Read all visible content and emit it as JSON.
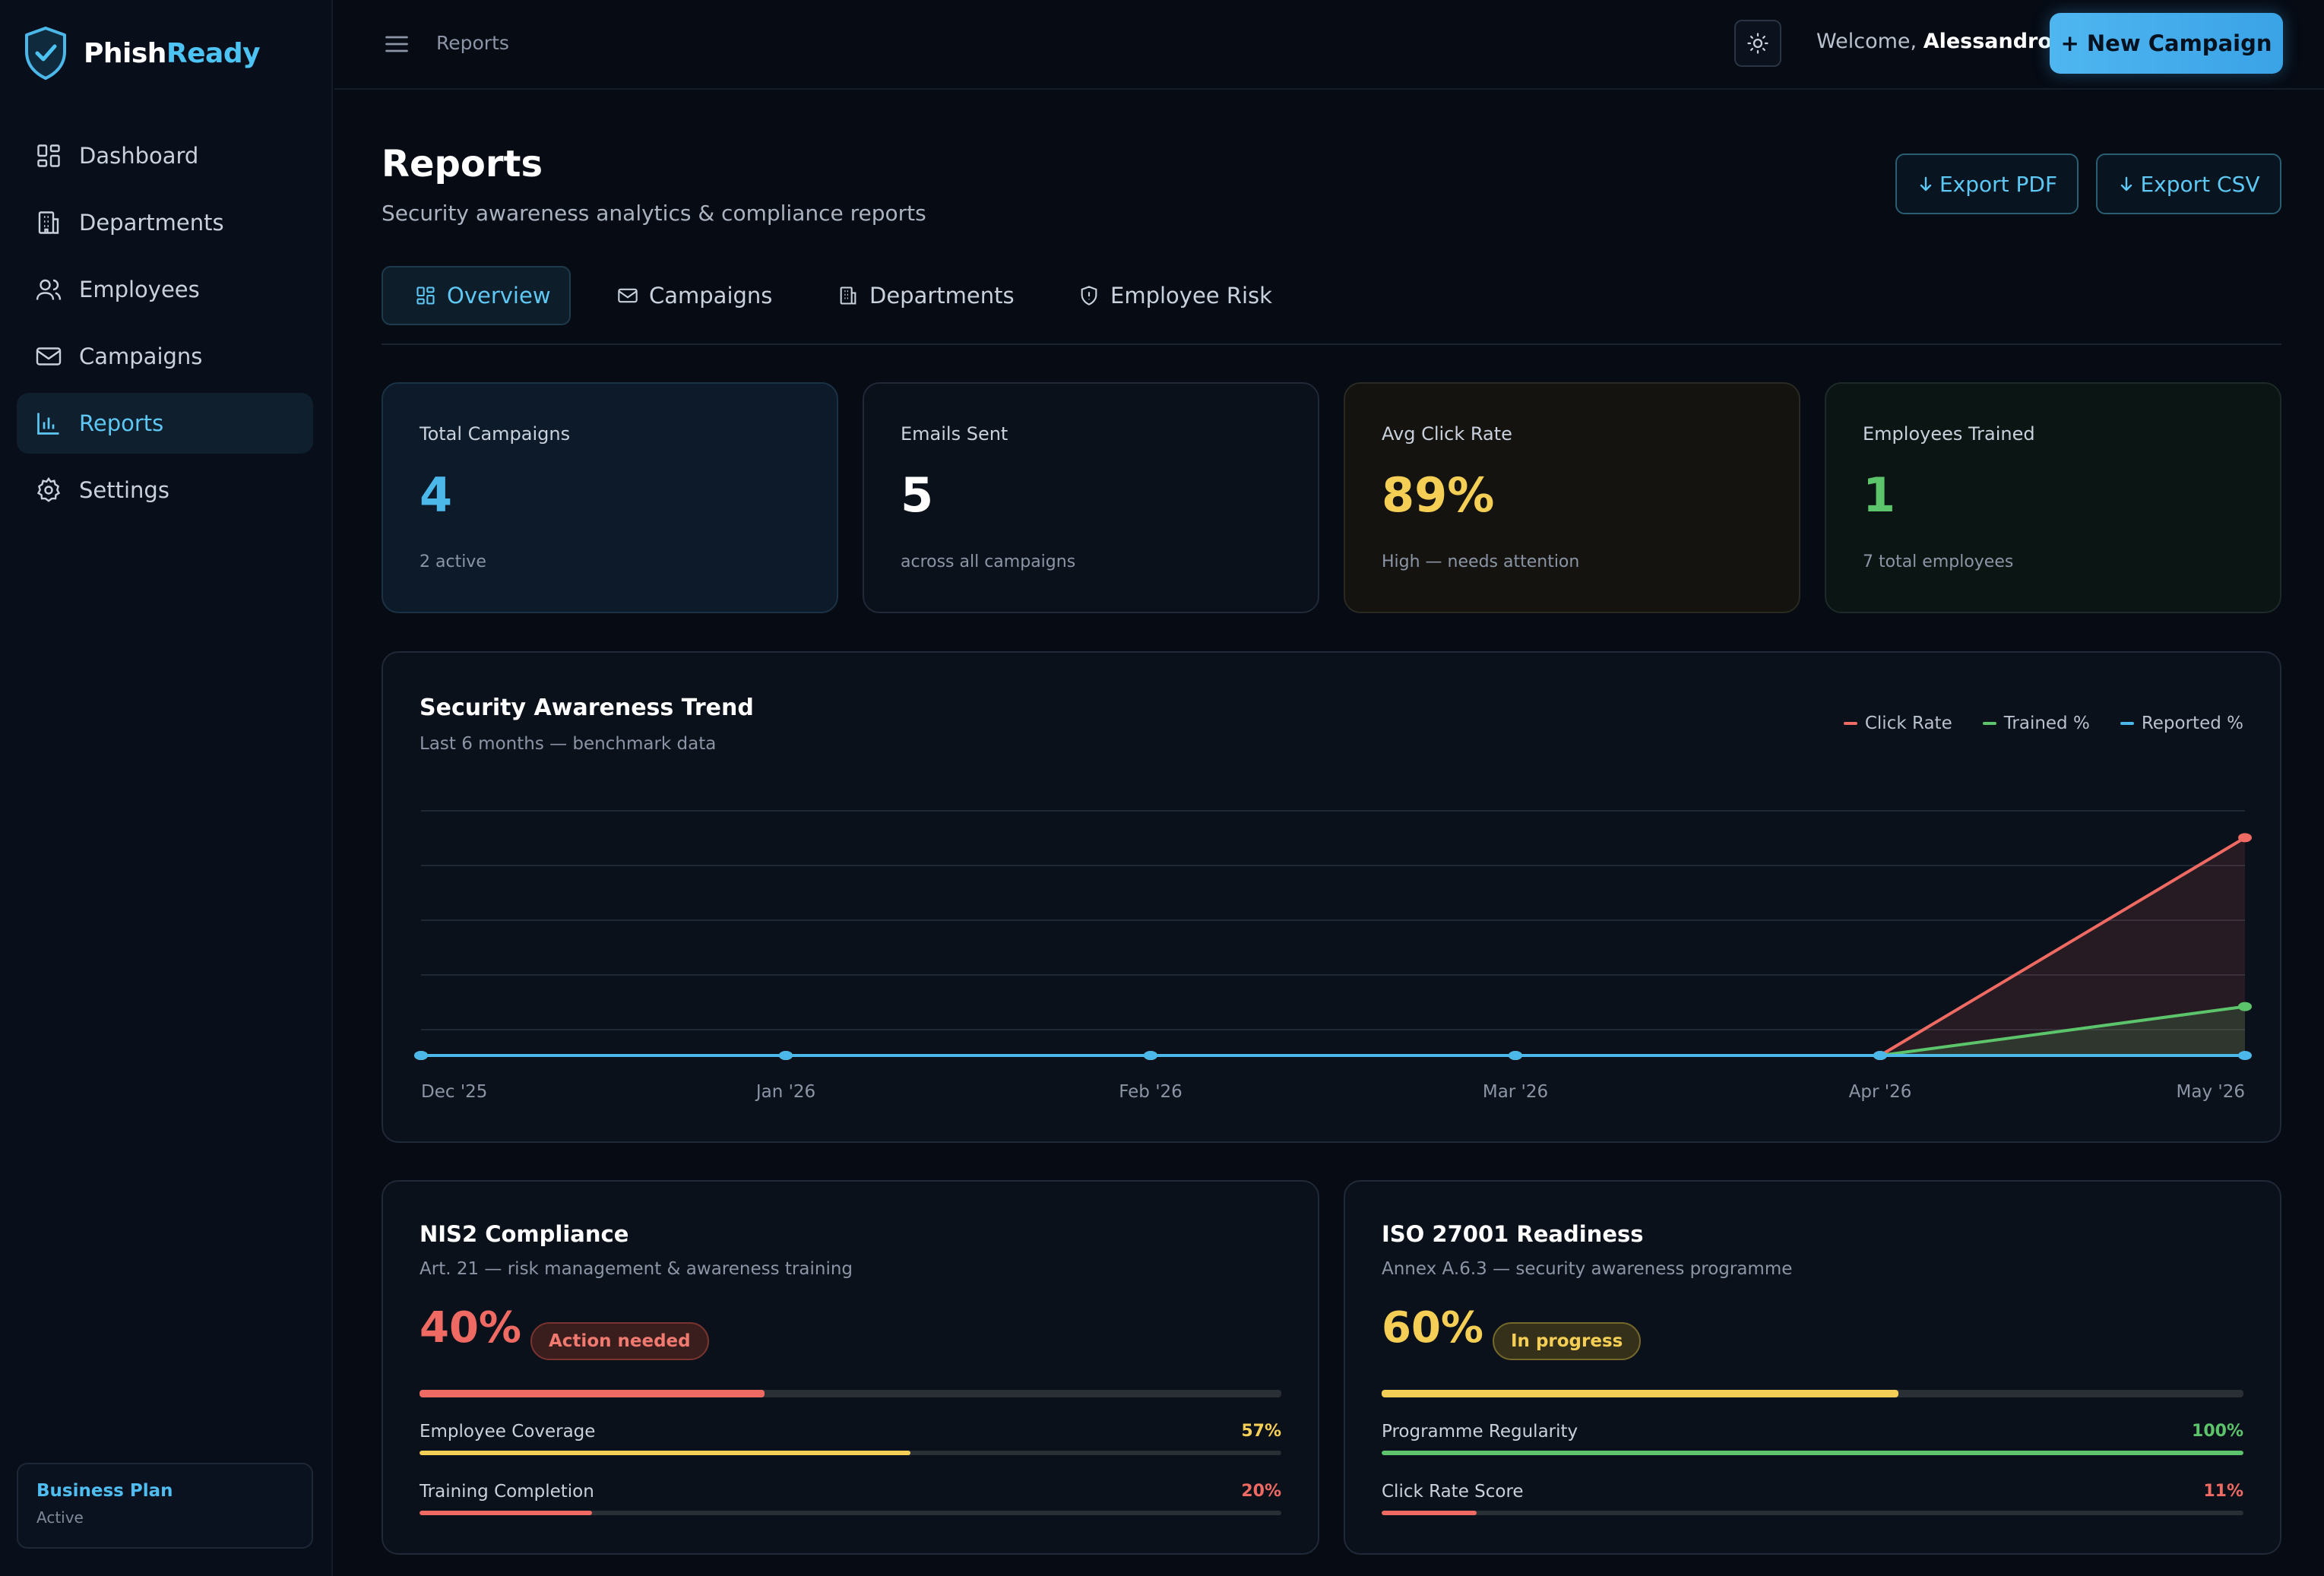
{
  "brand": {
    "name_part1": "Phish",
    "name_part2": "Ready",
    "icon": "shield-check-icon"
  },
  "sidebar": {
    "items": [
      {
        "label": "Dashboard",
        "icon": "grid-icon",
        "active": false
      },
      {
        "label": "Departments",
        "icon": "building-icon",
        "active": false
      },
      {
        "label": "Employees",
        "icon": "users-icon",
        "active": false
      },
      {
        "label": "Campaigns",
        "icon": "mail-icon",
        "active": false
      },
      {
        "label": "Reports",
        "icon": "bar-chart-icon",
        "active": true
      },
      {
        "label": "Settings",
        "icon": "gear-icon",
        "active": false
      }
    ],
    "plan": {
      "name": "Business Plan",
      "status": "Active"
    }
  },
  "topbar": {
    "breadcrumb": "Reports",
    "welcome_prefix": "Welcome,",
    "user_name": "Alessandro",
    "new_campaign_label": "+ New Campaign"
  },
  "page": {
    "title": "Reports",
    "subtitle": "Security awareness analytics & compliance reports",
    "export_pdf": "Export PDF",
    "export_csv": "Export CSV"
  },
  "tabs": [
    {
      "label": "Overview",
      "icon": "grid-icon",
      "active": true
    },
    {
      "label": "Campaigns",
      "icon": "mail-icon",
      "active": false
    },
    {
      "label": "Departments",
      "icon": "building-icon",
      "active": false
    },
    {
      "label": "Employee Risk",
      "icon": "shield-icon",
      "active": false
    }
  ],
  "stats": [
    {
      "label": "Total Campaigns",
      "value": "4",
      "sub": "2 active",
      "color": "#4cb8ea"
    },
    {
      "label": "Emails Sent",
      "value": "5",
      "sub": "across all campaigns",
      "color": "#ffffff"
    },
    {
      "label": "Avg Click Rate",
      "value": "89%",
      "sub": "High — needs attention",
      "color": "#f5cf55"
    },
    {
      "label": "Employees Trained",
      "value": "1",
      "sub": "7 total employees",
      "color": "#5cc46b"
    }
  ],
  "trend": {
    "title": "Security Awareness Trend",
    "subtitle": "Last 6 months — benchmark data",
    "legend": [
      {
        "label": "Click Rate",
        "color": "#ef6a62"
      },
      {
        "label": "Trained %",
        "color": "#5cc46b"
      },
      {
        "label": "Reported %",
        "color": "#4cb8ea"
      }
    ]
  },
  "chart_data": {
    "type": "line",
    "x": [
      "Dec '25",
      "Jan '26",
      "Feb '26",
      "Mar '26",
      "Apr '26",
      "May '26"
    ],
    "series": [
      {
        "name": "Click Rate",
        "values": [
          0,
          0,
          0,
          0,
          0,
          89
        ],
        "color": "#ef6a62"
      },
      {
        "name": "Trained %",
        "values": [
          0,
          0,
          0,
          0,
          0,
          20
        ],
        "color": "#5cc46b"
      },
      {
        "name": "Reported %",
        "values": [
          0,
          0,
          0,
          0,
          0,
          0
        ],
        "color": "#4cb8ea"
      }
    ],
    "ylim": [
      0,
      100
    ],
    "grid": true,
    "legend_position": "top-right"
  },
  "compliance": [
    {
      "title": "NIS2 Compliance",
      "subtitle": "Art. 21 — risk management & awareness training",
      "percent": "40%",
      "percent_value": 40,
      "badge": "Action needed",
      "color": "#ef6a62",
      "badge_bg": "#3a1d1d",
      "badge_border": "#7a3430",
      "badge_color": "#f07a70",
      "metrics": [
        {
          "label": "Employee Coverage",
          "value": "57%",
          "fill": 57,
          "color": "#f5cf55"
        },
        {
          "label": "Training Completion",
          "value": "20%",
          "fill": 20,
          "color": "#ef6a62"
        }
      ]
    },
    {
      "title": "ISO 27001 Readiness",
      "subtitle": "Annex A.6.3 — security awareness programme",
      "percent": "60%",
      "percent_value": 60,
      "badge": "In progress",
      "color": "#f5cf55",
      "badge_bg": "#35301a",
      "badge_border": "#75682c",
      "badge_color": "#f5cf55",
      "metrics": [
        {
          "label": "Programme Regularity",
          "value": "100%",
          "fill": 100,
          "color": "#5cc46b"
        },
        {
          "label": "Click Rate Score",
          "value": "11%",
          "fill": 11,
          "color": "#ef6a62"
        }
      ]
    }
  ]
}
